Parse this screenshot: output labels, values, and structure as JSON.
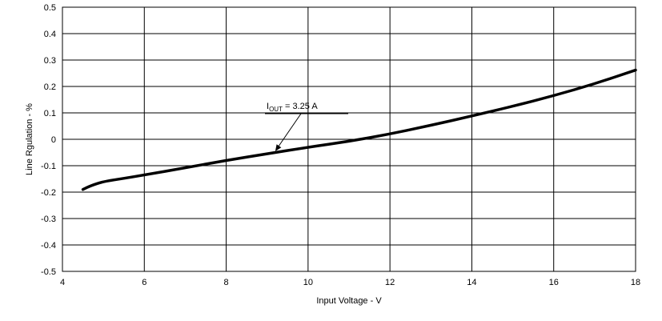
{
  "chart_data": {
    "type": "line",
    "title": "",
    "xlabel": "Input Voltage - V",
    "ylabel": "Line Rgulation - %",
    "xlim": [
      4,
      18
    ],
    "ylim": [
      -0.5,
      0.5
    ],
    "xticks": [
      4,
      6,
      8,
      10,
      12,
      14,
      16,
      18
    ],
    "xtick_labels": [
      "4",
      "6",
      "8",
      "10",
      "12",
      "14",
      "16",
      "18"
    ],
    "yticks": [
      0.5,
      0.4,
      0.3,
      0.2,
      0.1,
      0,
      -0.1,
      -0.2,
      -0.3,
      -0.4,
      -0.5
    ],
    "ytick_labels": [
      "0.5",
      "0.4",
      "0.3",
      "0.2",
      "0.1",
      "0",
      "-0.1",
      "-0.2",
      "-0.3",
      "-0.4",
      "-0.5"
    ],
    "grid": true,
    "legend": "none",
    "line_color": "#000000",
    "series": [
      {
        "x": [
          4.5,
          4.7,
          5.0,
          5.5,
          6.0,
          7.0,
          8.0,
          9.0,
          10.0,
          11.0,
          12.0,
          13.0,
          14.0,
          15.0,
          16.0,
          17.0,
          18.0
        ],
        "values": [
          -0.19,
          -0.175,
          -0.16,
          -0.148,
          -0.135,
          -0.108,
          -0.08,
          -0.055,
          -0.03,
          -0.008,
          0.02,
          0.053,
          0.088,
          0.125,
          0.165,
          0.21,
          0.262
        ]
      }
    ],
    "annotations": [
      {
        "text_main": "I",
        "text_sub": "OUT",
        "text_rest": " = 3.25 A",
        "x": 9.2,
        "y": -0.045
      }
    ]
  }
}
